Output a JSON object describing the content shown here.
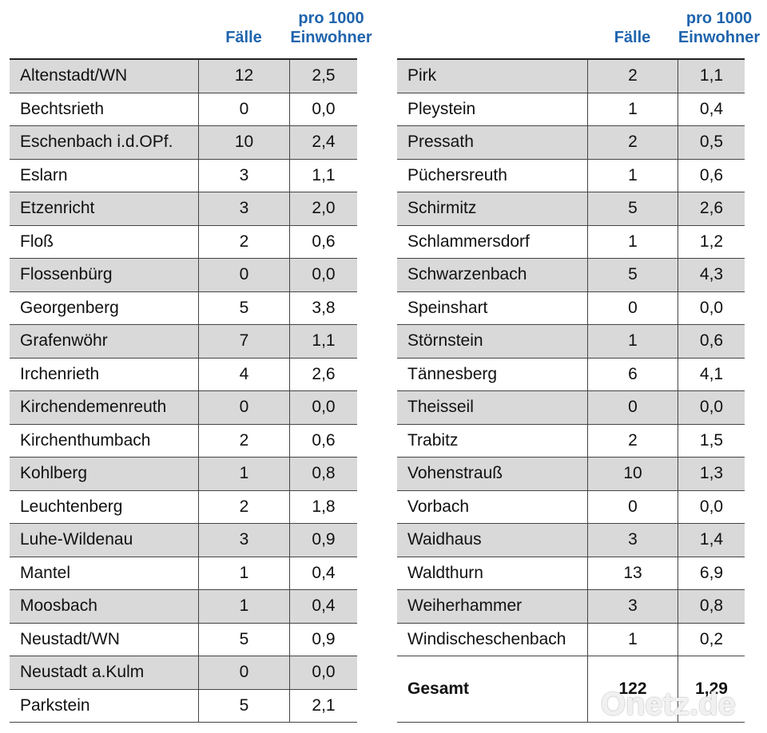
{
  "tables": [
    {
      "header": [
        "Fälle",
        "pro 1000",
        "Einwohner"
      ],
      "rows": [
        [
          "Altenstadt/WN",
          "12",
          "2,5"
        ],
        [
          "Bechtsrieth",
          "0",
          "0,0"
        ],
        [
          "Eschenbach i.d.OPf.",
          "10",
          "2,4"
        ],
        [
          "Eslarn",
          "3",
          "1,1"
        ],
        [
          "Etzenricht",
          "3",
          "2,0"
        ],
        [
          "Floß",
          "2",
          "0,6"
        ],
        [
          "Flossenbürg",
          "0",
          "0,0"
        ],
        [
          "Georgenberg",
          "5",
          "3,8"
        ],
        [
          "Grafenwöhr",
          "7",
          "1,1"
        ],
        [
          "Irchenrieth",
          "4",
          "2,6"
        ],
        [
          "Kirchendemenreuth",
          "0",
          "0,0"
        ],
        [
          "Kirchenthumbach",
          "2",
          "0,6"
        ],
        [
          "Kohlberg",
          "1",
          "0,8"
        ],
        [
          "Leuchtenberg",
          "2",
          "1,8"
        ],
        [
          "Luhe-Wildenau",
          "3",
          "0,9"
        ],
        [
          "Mantel",
          "1",
          "0,4"
        ],
        [
          "Moosbach",
          "1",
          "0,4"
        ],
        [
          "Neustadt/WN",
          "5",
          "0,9"
        ],
        [
          "Neustadt a.Kulm",
          "0",
          "0,0"
        ],
        [
          "Parkstein",
          "5",
          "2,1"
        ]
      ]
    },
    {
      "header": [
        "Fälle",
        "pro 1000",
        "Einwohner"
      ],
      "rows": [
        [
          "Pirk",
          "2",
          "1,1"
        ],
        [
          "Pleystein",
          "1",
          "0,4"
        ],
        [
          "Pressath",
          "2",
          "0,5"
        ],
        [
          "Püchersreuth",
          "1",
          "0,6"
        ],
        [
          "Schirmitz",
          "5",
          "2,6"
        ],
        [
          "Schlammersdorf",
          "1",
          "1,2"
        ],
        [
          "Schwarzenbach",
          "5",
          "4,3"
        ],
        [
          "Speinshart",
          "0",
          "0,0"
        ],
        [
          "Störnstein",
          "1",
          "0,6"
        ],
        [
          "Tännesberg",
          "6",
          "4,1"
        ],
        [
          "Theisseil",
          "0",
          "0,0"
        ],
        [
          "Trabitz",
          "2",
          "1,5"
        ],
        [
          "Vohenstrauß",
          "10",
          "1,3"
        ],
        [
          "Vorbach",
          "0",
          "0,0"
        ],
        [
          "Waidhaus",
          "3",
          "1,4"
        ],
        [
          "Waldthurn",
          "13",
          "6,9"
        ],
        [
          "Weiherhammer",
          "3",
          "0,8"
        ],
        [
          "Windischeschenbach",
          "1",
          "0,2"
        ]
      ],
      "total": [
        "Gesamt",
        "122",
        "1,29"
      ]
    }
  ],
  "watermark": "Onetz.de"
}
